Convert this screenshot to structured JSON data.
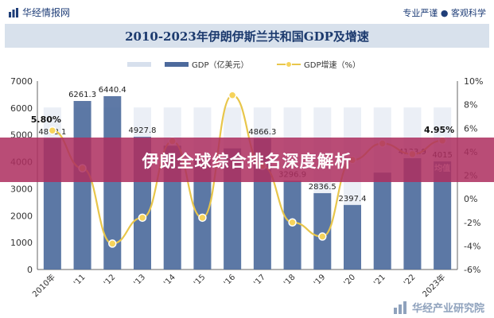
{
  "header": {
    "brand": "华经情报网",
    "slogan": "专业严谨 ● 客观科学"
  },
  "banner": {
    "text": "伊朗全球综合排名深度解析"
  },
  "footer": {
    "text": "华经产业研究院"
  },
  "colors": {
    "bar": "#4d6a9c",
    "bar_light": "#d7e0ed",
    "line": "#e8c64b",
    "point": "#f6d35b",
    "axis": "#333333"
  },
  "chart_data": {
    "type": "bar",
    "title": "2010-2023年伊朗伊斯兰共和国GDP及增速",
    "categories": [
      "2010年",
      "'11",
      "'12",
      "'13",
      "'14",
      "'15",
      "'16",
      "'17",
      "'18",
      "'19",
      "'20",
      "'21",
      "'22",
      "2023年"
    ],
    "series": [
      {
        "name": "GDP（亿美元）",
        "type": "bar",
        "axis": "left",
        "values": [
          4868.1,
          6261.3,
          6440.4,
          4927.8,
          4600,
          4100,
          4500,
          4866.3,
          3296.9,
          2836.5,
          2397.4,
          3600,
          4133.9,
          4015
        ]
      },
      {
        "name": "GDP增速（%）",
        "type": "line",
        "axis": "right",
        "values": [
          5.8,
          2.6,
          -3.8,
          -1.6,
          4.9,
          -1.6,
          8.8,
          2.8,
          -2.0,
          -3.2,
          3.3,
          4.7,
          3.8,
          4.95
        ]
      }
    ],
    "data_labels": [
      "4868.1",
      "6261.3",
      "6440.4",
      "4927.8",
      "",
      "",
      "",
      "4866.3",
      "3296.9",
      "2836.5",
      "2397.4",
      "",
      "4133.9",
      "4015"
    ],
    "growth_labels": [
      {
        "index": 0,
        "text": "5.80%"
      },
      {
        "index": 13,
        "text": "4.95%"
      }
    ],
    "extra_label": {
      "index": 13,
      "text": "均值"
    },
    "ylim_left": [
      0,
      7000
    ],
    "yticks_left": [
      "0",
      "1000",
      "2000",
      "3000",
      "4000",
      "5000",
      "6000",
      "7000"
    ],
    "ylim_right": [
      -6,
      10
    ],
    "yticks_right": [
      "-6%",
      "-4%",
      "-2%",
      "0%",
      "2%",
      "4%",
      "6%",
      "8%",
      "10%"
    ],
    "legend": [
      "",
      "GDP（亿美元）",
      "GDP增速（%）"
    ],
    "legend_position": "top"
  }
}
